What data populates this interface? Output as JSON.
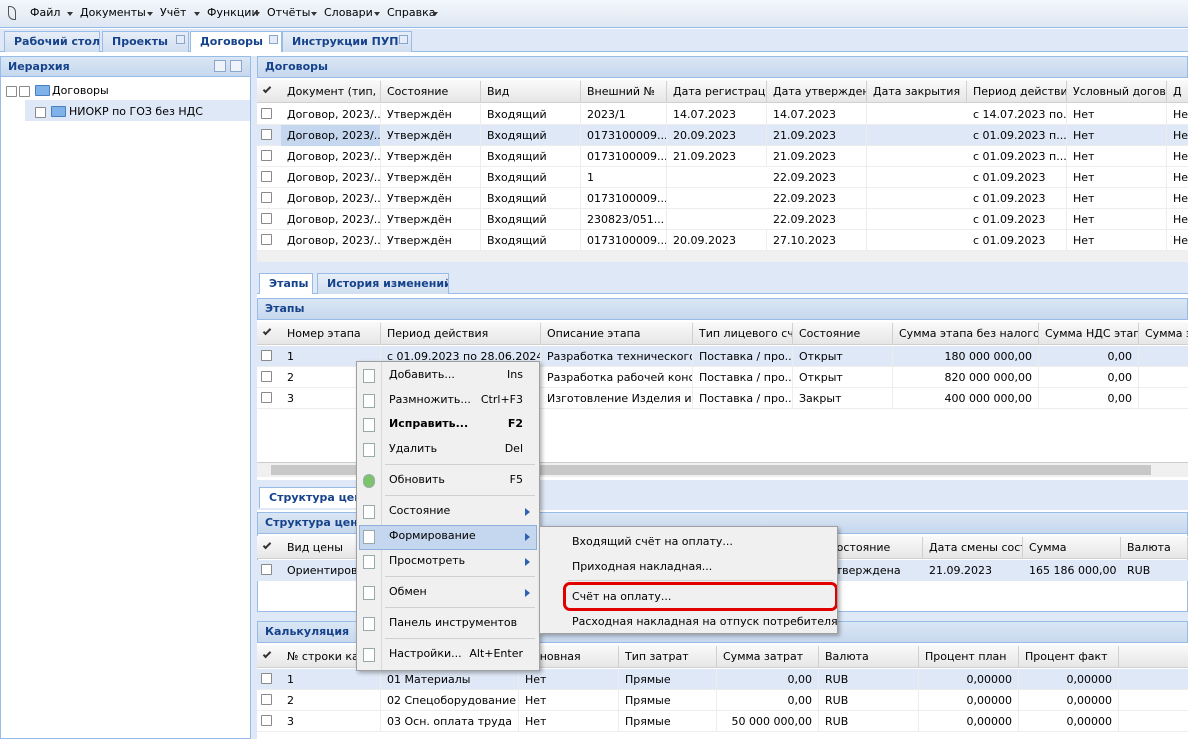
{
  "menu": [
    "Файл",
    "Документы",
    "Учёт",
    "Функции",
    "Отчёты",
    "Словари",
    "Справка"
  ],
  "tabs": [
    "Рабочий стол",
    "Проекты",
    "Договоры",
    "Инструкции ПУП"
  ],
  "hierarchy": {
    "title": "Иерархия",
    "nodes": [
      "Договоры",
      "НИОКР по ГОЗ без НДС"
    ]
  },
  "contracts": {
    "title": "Договоры",
    "columns": [
      "Документ (тип, №",
      "Состояние",
      "Вид",
      "Внешний №",
      "Дата регистрации",
      "Дата утверждения",
      "Дата закрытия",
      "Период действия",
      "Условный договор",
      "Д"
    ],
    "rows": [
      [
        "Договор, 2023/...",
        "Утверждён",
        "Входящий",
        "2023/1",
        "14.07.2023",
        "14.07.2023",
        null,
        "с 14.07.2023 по...",
        "Нет",
        "Не"
      ],
      [
        "Договор, 2023/...",
        "Утверждён",
        "Входящий",
        "0173100009...",
        "20.09.2023",
        "21.09.2023",
        null,
        "с 01.09.2023 п...",
        "Нет",
        "Не"
      ],
      [
        "Договор, 2023/...",
        "Утверждён",
        "Входящий",
        "0173100009...",
        "21.09.2023",
        "21.09.2023",
        null,
        "с 01.09.2023 п...",
        "Нет",
        "Не"
      ],
      [
        "Договор, 2023/...",
        "Утверждён",
        "Входящий",
        "1",
        null,
        "22.09.2023",
        null,
        "с 01.09.2023",
        "Нет",
        "Не"
      ],
      [
        "Договор, 2023/...",
        "Утверждён",
        "Входящий",
        "0173100009...",
        null,
        "22.09.2023",
        null,
        "с 01.09.2023",
        "Нет",
        "Не"
      ],
      [
        "Договор, 2023/...",
        "Утверждён",
        "Входящий",
        "230823/051...",
        null,
        "22.09.2023",
        null,
        "с 01.09.2023",
        "Нет",
        "Не"
      ],
      [
        "Договор, 2023/...",
        "Утверждён",
        "Входящий",
        "0173100009...",
        "20.09.2023",
        "27.10.2023",
        null,
        "с 01.09.2023",
        "Нет",
        "Не"
      ]
    ]
  },
  "stage_tabs": [
    "Этапы",
    "История изменений"
  ],
  "stages": {
    "title": "Этапы",
    "columns": [
      "Номер этапа",
      "Период действия",
      "Описание этапа",
      "Тип лицевого счёт",
      "Состояние",
      "Сумма этапа без налогов",
      "Сумма НДС этапа",
      "Сумма эт"
    ],
    "rows": [
      [
        "1",
        "с 01.09.2023 по 28.06.2024",
        "Разработка технического...",
        "Поставка / про...",
        "Открыт",
        "180 000 000,00",
        "0,00",
        null
      ],
      [
        "2",
        null,
        "Разработка рабочей конс...",
        "Поставка / про...",
        "Открыт",
        "820 000 000,00",
        "0,00",
        null
      ],
      [
        "3",
        null,
        "Изготовление Изделия и ...",
        "Поставка / про...",
        "Закрыт",
        "400 000 000,00",
        "0,00",
        null
      ]
    ]
  },
  "price_tab": "Структура цены",
  "price": {
    "title": "Структура цены",
    "columns": [
      "Вид цены",
      "Состояние",
      "Дата смены состо",
      "Сумма",
      "Валюта"
    ],
    "rows": [
      [
        "Ориентировоч",
        "Утверждена",
        "21.09.2023",
        "165 186 000,00",
        "RUB"
      ]
    ]
  },
  "calc": {
    "title": "Калькуляция",
    "columns": [
      "№ строки кал",
      null,
      "Основная",
      "Тип затрат",
      "Сумма затрат",
      "Валюта",
      "Процент план",
      "Процент факт"
    ],
    "rows": [
      [
        "1",
        "01 Материалы",
        "Нет",
        "Прямые",
        "0,00",
        "RUB",
        "0,00000",
        "0,00000"
      ],
      [
        "2",
        "02 Спецоборудование",
        "Нет",
        "Прямые",
        "0,00",
        "RUB",
        "0,00000",
        "0,00000"
      ],
      [
        "3",
        "03 Осн. оплата труда",
        "Нет",
        "Прямые",
        "50 000 000,00",
        "RUB",
        "0,00000",
        "0,00000"
      ]
    ]
  },
  "context_menu": [
    {
      "label": "Добавить...",
      "key": "Ins"
    },
    {
      "label": "Размножить...",
      "key": "Ctrl+F3"
    },
    {
      "label": "Исправить...",
      "key": "F2"
    },
    {
      "label": "Удалить",
      "key": "Del"
    },
    {
      "label": "Обновить",
      "key": "F5"
    },
    {
      "label": "Состояние"
    },
    {
      "label": "Формирование"
    },
    {
      "label": "Просмотреть"
    },
    {
      "label": "Обмен"
    },
    {
      "label": "Панель инструментов"
    },
    {
      "label": "Настройки...",
      "key": "Alt+Enter"
    }
  ],
  "submenu": [
    "Входящий счёт на оплату...",
    "Приходная накладная...",
    "Счёт на оплату...",
    "Расходная накладная на отпуск потребителям..."
  ]
}
